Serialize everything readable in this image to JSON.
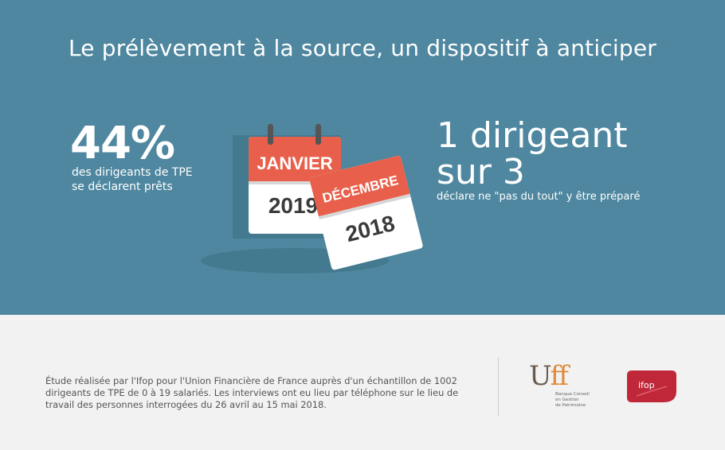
{
  "title": "Le prélèvement à la source, un dispositif à anticiper",
  "left_stat": {
    "value": "44%",
    "line1": "des dirigeants de TPE",
    "line2": "se déclarent prêts"
  },
  "right_stat": {
    "line1": "1 dirigeant",
    "line2": "sur 3",
    "caption": "déclare ne \"pas du tout\" y être préparé"
  },
  "calendar_back": {
    "month": "JANVIER",
    "year": "2019"
  },
  "calendar_front": {
    "month": "DÉCEMBRE",
    "year": "2018"
  },
  "footnote": "Étude réalisée par l'Ifop pour l'Union Financière de France auprès d'un échantillon de 1002 dirigeants de TPE de 0 à 19 salariés. Les interviews ont eu lieu par téléphone sur le lieu de travail des personnes interrogées du 26 avril au 15 mai 2018.",
  "logos": {
    "uff_u": "U",
    "uff_ff": "ff",
    "uff_line1": "Banque Conseil",
    "uff_line2": "en Gestion",
    "uff_line3": "de Patrimoine",
    "ifop": "ifop"
  },
  "colors": {
    "banner": "#4e879f",
    "calendar_red": "#e8604c",
    "ifop_red": "#c0283a"
  }
}
